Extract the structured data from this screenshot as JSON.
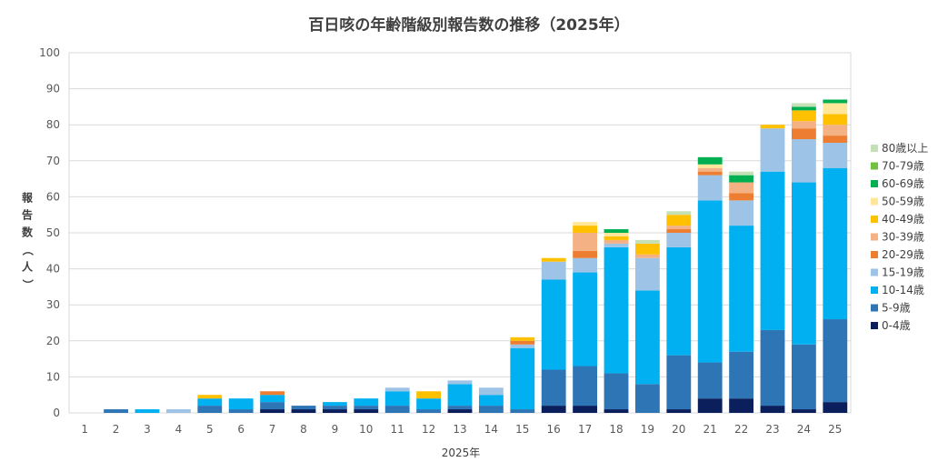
{
  "chart_data": {
    "type": "bar",
    "stacked": true,
    "title": "百日咳の年齢階級別報告数の推移（2025年）",
    "xlabel": "2025年",
    "ylabel": "報告数（人）",
    "ylim": [
      0,
      100
    ],
    "yticks": [
      0,
      10,
      20,
      30,
      40,
      50,
      60,
      70,
      80,
      90,
      100
    ],
    "grid": true,
    "legend_position": "right",
    "categories": [
      "1",
      "2",
      "3",
      "4",
      "5",
      "6",
      "7",
      "8",
      "9",
      "10",
      "11",
      "12",
      "13",
      "14",
      "15",
      "16",
      "17",
      "18",
      "19",
      "20",
      "21",
      "22",
      "23",
      "24",
      "25"
    ],
    "series": [
      {
        "name": "0-4歳",
        "color": "#0a1f5c",
        "values": [
          0,
          0,
          0,
          0,
          0,
          0,
          1,
          1,
          1,
          1,
          0,
          0,
          1,
          0,
          0,
          2,
          2,
          1,
          0,
          1,
          4,
          4,
          2,
          1,
          3
        ]
      },
      {
        "name": "5-9歳",
        "color": "#2e75b6",
        "values": [
          0,
          1,
          0,
          0,
          2,
          1,
          2,
          1,
          1,
          1,
          2,
          1,
          1,
          2,
          1,
          10,
          11,
          10,
          8,
          15,
          10,
          13,
          21,
          18,
          23
        ]
      },
      {
        "name": "10-14歳",
        "color": "#00b0f0",
        "values": [
          0,
          0,
          1,
          0,
          2,
          3,
          2,
          0,
          1,
          2,
          4,
          3,
          6,
          3,
          17,
          25,
          26,
          35,
          26,
          30,
          45,
          35,
          44,
          45,
          42
        ]
      },
      {
        "name": "15-19歳",
        "color": "#9dc3e6",
        "values": [
          0,
          0,
          0,
          1,
          0,
          0,
          0,
          0,
          0,
          0,
          1,
          0,
          1,
          2,
          1,
          5,
          4,
          1,
          9,
          4,
          7,
          7,
          12,
          12,
          7
        ]
      },
      {
        "name": "20-29歳",
        "color": "#ed7d31",
        "values": [
          0,
          0,
          0,
          0,
          0,
          0,
          1,
          0,
          0,
          0,
          0,
          0,
          0,
          0,
          1,
          0,
          2,
          0,
          0,
          1,
          1,
          2,
          0,
          3,
          2
        ]
      },
      {
        "name": "30-39歳",
        "color": "#f4b183",
        "values": [
          0,
          0,
          0,
          0,
          0,
          0,
          0,
          0,
          0,
          0,
          0,
          0,
          0,
          0,
          0,
          0,
          5,
          1,
          1,
          1,
          1,
          3,
          0,
          2,
          3
        ]
      },
      {
        "name": "40-49歳",
        "color": "#ffc000",
        "values": [
          0,
          0,
          0,
          0,
          1,
          0,
          0,
          0,
          0,
          0,
          0,
          2,
          0,
          0,
          1,
          1,
          2,
          1,
          3,
          3,
          0,
          0,
          1,
          3,
          3
        ]
      },
      {
        "name": "50-59歳",
        "color": "#ffe699",
        "values": [
          0,
          0,
          0,
          0,
          0,
          0,
          0,
          0,
          0,
          0,
          0,
          0,
          0,
          0,
          0,
          0,
          1,
          1,
          0,
          0,
          1,
          0,
          0,
          0,
          3
        ]
      },
      {
        "name": "60-69歳",
        "color": "#00b050",
        "values": [
          0,
          0,
          0,
          0,
          0,
          0,
          0,
          0,
          0,
          0,
          0,
          0,
          0,
          0,
          0,
          0,
          0,
          1,
          0,
          0,
          2,
          2,
          0,
          1,
          1
        ]
      },
      {
        "name": "70-79歳",
        "color": "#70c140",
        "values": [
          0,
          0,
          0,
          0,
          0,
          0,
          0,
          0,
          0,
          0,
          0,
          0,
          0,
          0,
          0,
          0,
          0,
          0,
          0,
          0,
          0,
          0,
          0,
          0,
          0
        ]
      },
      {
        "name": "80歳以上",
        "color": "#c5e0b4",
        "values": [
          0,
          0,
          0,
          0,
          0,
          0,
          0,
          0,
          0,
          0,
          0,
          0,
          0,
          0,
          0,
          0,
          0,
          0,
          1,
          1,
          0,
          1,
          0,
          1,
          0
        ]
      }
    ]
  }
}
